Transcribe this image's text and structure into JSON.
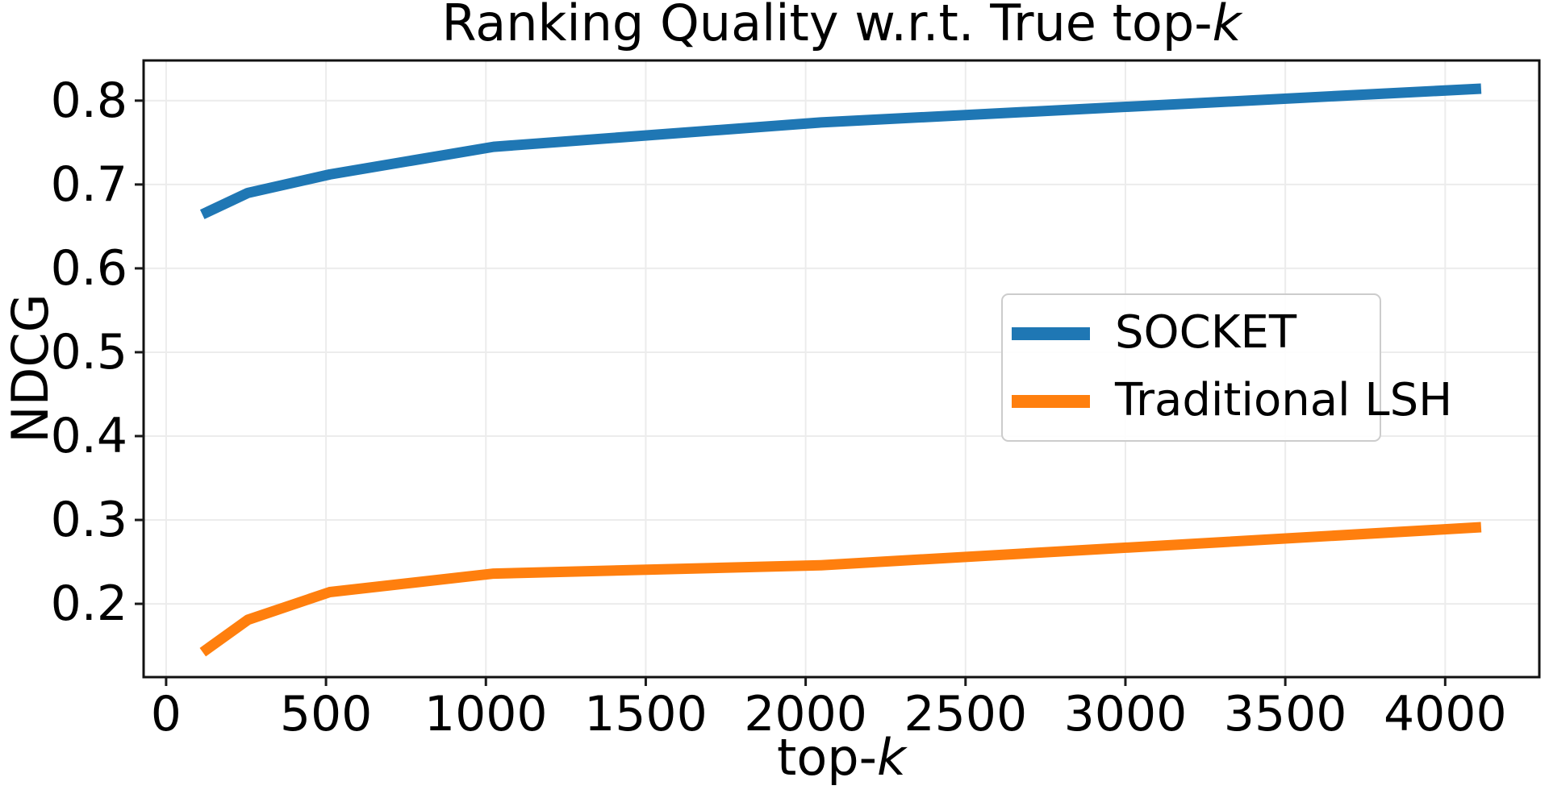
{
  "title": {
    "prefix": "Ranking Quality w.r.t. True top-",
    "k_char": "k"
  },
  "axes": {
    "ylabel": "NDCG",
    "xlabel_prefix": "top-",
    "xlabel_k_char": "k"
  },
  "chart_data": {
    "type": "line",
    "title": "Ranking Quality w.r.t. True top-k",
    "xlabel": "top-k",
    "ylabel": "NDCG",
    "grid": true,
    "legend_position": "center-right",
    "xlim": [
      -70.4,
      4294.4
    ],
    "ylim": [
      0.1126,
      0.8479
    ],
    "x": [
      128,
      256,
      512,
      1024,
      2048,
      4096
    ],
    "series": [
      {
        "name": "SOCKET",
        "color": "#1f77b4",
        "values": [
          0.667,
          0.69,
          0.712,
          0.745,
          0.774,
          0.814
        ]
      },
      {
        "name": "Traditional LSH",
        "color": "#ff7f0e",
        "values": [
          0.146,
          0.181,
          0.214,
          0.236,
          0.246,
          0.291
        ]
      }
    ],
    "x_ticks": [
      {
        "value": 0,
        "label": "0"
      },
      {
        "value": 500,
        "label": "500"
      },
      {
        "value": 1000,
        "label": "1000"
      },
      {
        "value": 1500,
        "label": "1500"
      },
      {
        "value": 2000,
        "label": "2000"
      },
      {
        "value": 2500,
        "label": "2500"
      },
      {
        "value": 3000,
        "label": "3000"
      },
      {
        "value": 3500,
        "label": "3500"
      },
      {
        "value": 4000,
        "label": "4000"
      }
    ],
    "y_ticks": [
      {
        "value": 0.2,
        "label": "0.2"
      },
      {
        "value": 0.3,
        "label": "0.3"
      },
      {
        "value": 0.4,
        "label": "0.4"
      },
      {
        "value": 0.5,
        "label": "0.5"
      },
      {
        "value": 0.6,
        "label": "0.6"
      },
      {
        "value": 0.7,
        "label": "0.7"
      },
      {
        "value": 0.8,
        "label": "0.8"
      }
    ]
  },
  "style": {
    "background": "#ffffff",
    "grid_color": "#ececec",
    "spine_color": "#111111",
    "tick_color": "#1a1a1a",
    "legend_border_color": "#cccccc",
    "line_width": 13
  }
}
